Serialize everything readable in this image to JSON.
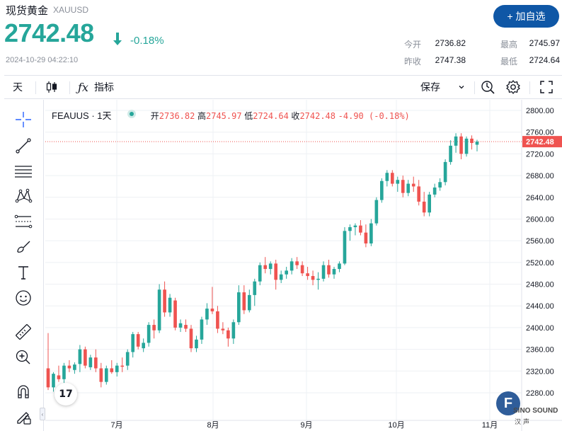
{
  "header": {
    "title": "现货黄金",
    "symbol": "XAUUSD",
    "price": "2742.48",
    "change": "-0.18%",
    "timestamp": "2024-10-29 04:22:10",
    "add_button": "+ 加自选",
    "stats": {
      "open_label": "今开",
      "open_value": "2736.82",
      "prev_close_label": "昨收",
      "prev_close_value": "2747.38",
      "high_label": "最高",
      "high_value": "2745.97",
      "low_label": "最低",
      "low_value": "2724.64"
    }
  },
  "toolbar": {
    "interval": "天",
    "indicators_label": "指标",
    "save_label": "保存"
  },
  "legend": {
    "symbol_interval": "FEAUUS · 1天",
    "open_label": "开",
    "open_value": "2736.82",
    "high_label": "高",
    "high_value": "2745.97",
    "low_label": "低",
    "low_value": "2724.64",
    "close_label": "收",
    "close_value": "2742.48",
    "change_value": "-4.90 (-0.18%)"
  },
  "watermark": {
    "text": "SINO SOUND",
    "sub": "汉声",
    "logo_letter": "F"
  },
  "tv_logo": "17",
  "colors": {
    "up": "#26a69a",
    "down": "#ef5350",
    "accent": "#0f57a6",
    "grid": "#eef0f4"
  },
  "icons": [
    "crosshair-icon",
    "trendline-icon",
    "horizontal-lines-icon",
    "pattern-icon",
    "measure-lines-icon",
    "brush-icon",
    "text-icon",
    "emoji-icon",
    "ruler-icon",
    "zoom-in-icon",
    "magnet-icon",
    "lock-pen-icon",
    "candle-type-icon",
    "fx-icon",
    "alert-icon",
    "settings-icon",
    "fullscreen-icon"
  ],
  "chart_data": {
    "type": "candlestick",
    "ylim": [
      2260,
      2810
    ],
    "y_ticks": [
      2280,
      2320,
      2360,
      2400,
      2440,
      2480,
      2520,
      2560,
      2600,
      2640,
      2680,
      2720,
      2760,
      2800
    ],
    "x_ticks": [
      "7月",
      "8月",
      "9月",
      "10月",
      "11月"
    ],
    "last_price": 2742.48,
    "ohlc": [
      [
        2325,
        2390,
        2285,
        2290
      ],
      [
        2290,
        2318,
        2282,
        2315
      ],
      [
        2312,
        2330,
        2300,
        2305
      ],
      [
        2305,
        2335,
        2298,
        2330
      ],
      [
        2330,
        2340,
        2318,
        2325
      ],
      [
        2322,
        2336,
        2315,
        2332
      ],
      [
        2333,
        2368,
        2318,
        2360
      ],
      [
        2360,
        2365,
        2325,
        2330
      ],
      [
        2327,
        2350,
        2322,
        2345
      ],
      [
        2345,
        2360,
        2318,
        2325
      ],
      [
        2325,
        2335,
        2290,
        2300
      ],
      [
        2300,
        2330,
        2295,
        2325
      ],
      [
        2325,
        2340,
        2315,
        2318
      ],
      [
        2318,
        2335,
        2310,
        2330
      ],
      [
        2330,
        2345,
        2318,
        2328
      ],
      [
        2330,
        2360,
        2322,
        2355
      ],
      [
        2355,
        2392,
        2345,
        2388
      ],
      [
        2388,
        2392,
        2360,
        2365
      ],
      [
        2362,
        2380,
        2355,
        2372
      ],
      [
        2372,
        2410,
        2365,
        2405
      ],
      [
        2405,
        2415,
        2380,
        2395
      ],
      [
        2395,
        2480,
        2390,
        2470
      ],
      [
        2470,
        2485,
        2420,
        2428
      ],
      [
        2428,
        2462,
        2420,
        2455
      ],
      [
        2450,
        2455,
        2395,
        2400
      ],
      [
        2400,
        2415,
        2392,
        2408
      ],
      [
        2405,
        2415,
        2392,
        2398
      ],
      [
        2398,
        2405,
        2355,
        2362
      ],
      [
        2362,
        2385,
        2355,
        2378
      ],
      [
        2378,
        2420,
        2370,
        2415
      ],
      [
        2415,
        2445,
        2405,
        2435
      ],
      [
        2435,
        2475,
        2425,
        2430
      ],
      [
        2430,
        2440,
        2390,
        2398
      ],
      [
        2398,
        2410,
        2388,
        2395
      ],
      [
        2395,
        2400,
        2365,
        2380
      ],
      [
        2380,
        2415,
        2370,
        2410
      ],
      [
        2410,
        2478,
        2405,
        2465
      ],
      [
        2465,
        2478,
        2425,
        2432
      ],
      [
        2432,
        2470,
        2428,
        2460
      ],
      [
        2460,
        2490,
        2440,
        2485
      ],
      [
        2485,
        2520,
        2478,
        2515
      ],
      [
        2515,
        2530,
        2500,
        2508
      ],
      [
        2508,
        2522,
        2498,
        2518
      ],
      [
        2518,
        2525,
        2470,
        2488
      ],
      [
        2488,
        2505,
        2482,
        2498
      ],
      [
        2498,
        2512,
        2490,
        2505
      ],
      [
        2505,
        2528,
        2498,
        2522
      ],
      [
        2522,
        2530,
        2508,
        2515
      ],
      [
        2515,
        2522,
        2495,
        2500
      ],
      [
        2500,
        2512,
        2488,
        2495
      ],
      [
        2495,
        2505,
        2478,
        2488
      ],
      [
        2488,
        2502,
        2470,
        2490
      ],
      [
        2490,
        2522,
        2485,
        2515
      ],
      [
        2515,
        2525,
        2492,
        2498
      ],
      [
        2498,
        2512,
        2490,
        2508
      ],
      [
        2508,
        2522,
        2502,
        2518
      ],
      [
        2518,
        2585,
        2515,
        2578
      ],
      [
        2578,
        2590,
        2560,
        2585
      ],
      [
        2585,
        2592,
        2570,
        2588
      ],
      [
        2588,
        2598,
        2570,
        2575
      ],
      [
        2575,
        2590,
        2548,
        2555
      ],
      [
        2555,
        2600,
        2550,
        2592
      ],
      [
        2592,
        2640,
        2588,
        2635
      ],
      [
        2635,
        2675,
        2630,
        2670
      ],
      [
        2670,
        2690,
        2660,
        2685
      ],
      [
        2685,
        2690,
        2660,
        2665
      ],
      [
        2665,
        2678,
        2650,
        2672
      ],
      [
        2672,
        2680,
        2640,
        2648
      ],
      [
        2648,
        2672,
        2642,
        2665
      ],
      [
        2665,
        2678,
        2650,
        2660
      ],
      [
        2660,
        2672,
        2625,
        2632
      ],
      [
        2632,
        2650,
        2605,
        2612
      ],
      [
        2612,
        2650,
        2605,
        2645
      ],
      [
        2645,
        2665,
        2640,
        2658
      ],
      [
        2658,
        2675,
        2652,
        2668
      ],
      [
        2668,
        2710,
        2662,
        2705
      ],
      [
        2705,
        2745,
        2700,
        2735
      ],
      [
        2735,
        2758,
        2722,
        2752
      ],
      [
        2752,
        2758,
        2710,
        2720
      ],
      [
        2720,
        2752,
        2715,
        2748
      ],
      [
        2748,
        2754,
        2728,
        2740
      ],
      [
        2736.82,
        2745.97,
        2724.64,
        2742.48
      ]
    ]
  }
}
